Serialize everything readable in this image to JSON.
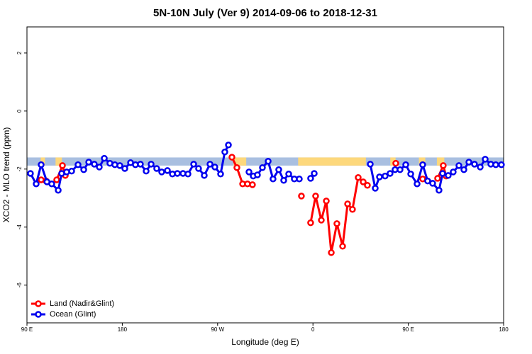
{
  "chart_data": {
    "type": "line",
    "title": "5N-10N July (Ver 9)   2014-09-06 to 2018-12-31",
    "x_label": "Longitude (deg E)",
    "y_label": "XCO2 - MLO trend (ppm)",
    "xlim": [
      90,
      540
    ],
    "ylim": [
      -7.3,
      2.9
    ],
    "xticks": [
      {
        "value": 90,
        "label": "90 E"
      },
      {
        "value": 180,
        "label": "180"
      },
      {
        "value": 270,
        "label": "90 W"
      },
      {
        "value": 360,
        "label": "0"
      },
      {
        "value": 450,
        "label": "90 E"
      },
      {
        "value": 540,
        "label": "180"
      }
    ],
    "yticks": [
      -6,
      -4,
      -2,
      0,
      2
    ],
    "band": {
      "ylim": [
        -1.88,
        -1.6
      ],
      "color": "#a9bfe0",
      "land_color": "#fdd87c",
      "land": [
        [
          103,
          107
        ],
        [
          117,
          123
        ],
        [
          285,
          297
        ],
        [
          346,
          410
        ],
        [
          433,
          438
        ],
        [
          460,
          466
        ],
        [
          477,
          484
        ]
      ]
    },
    "legend": "bottom-left",
    "series": [
      {
        "name": "Land (Nadir&Glint)",
        "color": "#ff0000",
        "x": [
          103.4,
          108.1,
          null,
          118.1,
          123.5,
          126.2,
          null,
          283.5,
          288.2,
          293.6,
          298.2,
          302.9,
          null,
          349.1,
          null,
          357.8,
          362.5,
          367.9,
          372.6,
          377.3,
          382.6,
          388.0,
          392.7,
          397.3,
          402.7,
          407.4,
          411.4,
          null,
          438.2,
          null,
          463.6,
          null,
          477.7,
          483.0,
          485.7
        ],
        "values": [
          -2.37,
          -2.41,
          null,
          -2.37,
          -1.88,
          -2.22,
          null,
          -1.59,
          -1.95,
          -2.51,
          -2.51,
          -2.54,
          null,
          -2.93,
          null,
          -3.85,
          -2.93,
          -3.76,
          -3.1,
          -4.88,
          -3.88,
          -4.66,
          -3.2,
          -3.39,
          -2.29,
          -2.44,
          -2.56,
          null,
          -1.8,
          null,
          -2.34,
          null,
          -2.32,
          -1.88,
          -2.24
        ]
      },
      {
        "name": "Ocean (Glint)",
        "color": "#0000ee",
        "x": [
          93.3,
          98.7,
          103.4,
          108.9,
          113.4,
          119.5,
          122.8,
          127.5,
          132.2,
          138.2,
          143.6,
          148.3,
          153.6,
          158.3,
          163.0,
          168.3,
          173.0,
          177.7,
          182.4,
          187.8,
          192.4,
          197.1,
          202.5,
          207.2,
          212.5,
          217.2,
          222.6,
          227.3,
          232.0,
          237.3,
          242.0,
          247.4,
          252.0,
          257.4,
          262.8,
          267.4,
          272.8,
          276.8,
          280.2,
          null,
          299.6,
          303.6,
          307.6,
          312.3,
          317.7,
          322.3,
          327.7,
          332.4,
          337.1,
          342.4,
          347.1,
          null,
          357.8,
          361.2,
          null,
          414.1,
          418.8,
          422.8,
          428.1,
          432.8,
          437.5,
          442.2,
          447.6,
          452.3,
          458.3,
          463.6,
          468.3,
          473.0,
          479.0,
          482.4,
          487.7,
          492.4,
          497.8,
          502.5,
          507.2,
          512.5,
          517.9,
          522.6,
          527.9,
          532.6,
          537.9
        ],
        "values": [
          -2.15,
          -2.51,
          -1.85,
          -2.44,
          -2.51,
          -2.73,
          -2.15,
          -2.1,
          -2.07,
          -1.85,
          -2.02,
          -1.76,
          -1.83,
          -1.93,
          -1.63,
          -1.8,
          -1.85,
          -1.88,
          -1.98,
          -1.78,
          -1.85,
          -1.83,
          -2.07,
          -1.83,
          -1.98,
          -2.1,
          -2.05,
          -2.17,
          -2.15,
          -2.15,
          -2.17,
          -1.83,
          -1.98,
          -2.22,
          -1.83,
          -1.93,
          -2.17,
          -1.41,
          -1.17,
          null,
          -2.1,
          -2.24,
          -2.2,
          -1.95,
          -1.73,
          -2.34,
          -2.02,
          -2.39,
          -2.17,
          -2.34,
          -2.34,
          null,
          -2.32,
          -2.15,
          null,
          -1.83,
          -2.66,
          -2.27,
          -2.24,
          -2.15,
          -2.02,
          -2.02,
          -1.85,
          -2.17,
          -2.51,
          -1.85,
          -2.41,
          -2.49,
          -2.73,
          -2.15,
          -2.22,
          -2.1,
          -1.88,
          -2.02,
          -1.76,
          -1.83,
          -1.93,
          -1.66,
          -1.83,
          -1.85,
          -1.85
        ]
      }
    ]
  }
}
